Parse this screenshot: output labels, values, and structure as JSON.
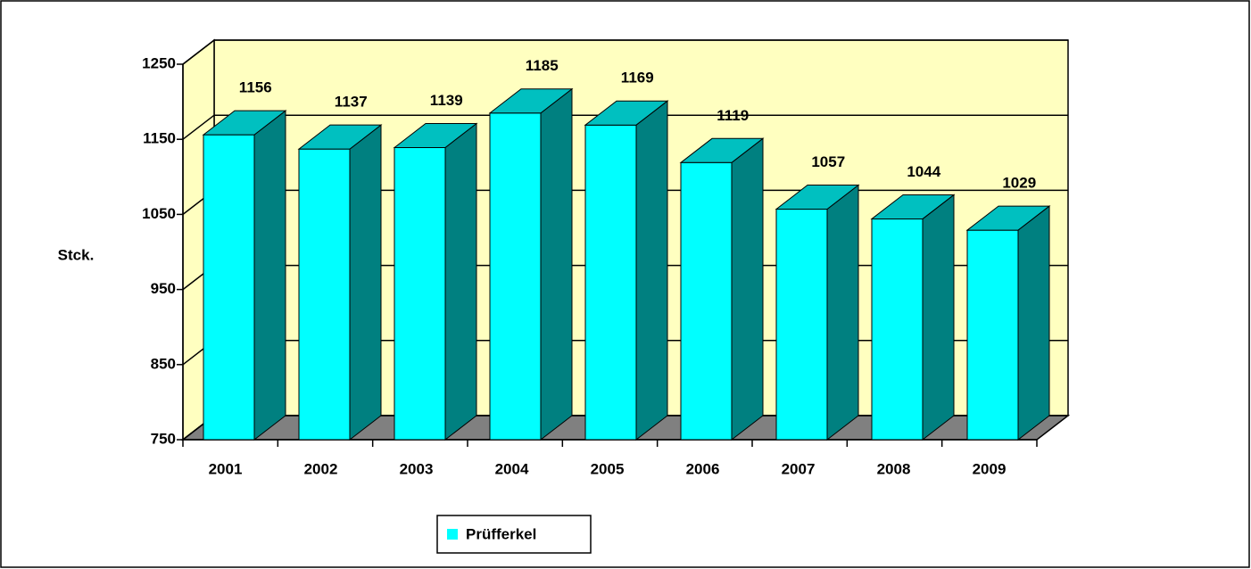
{
  "chart_data": {
    "type": "bar3d",
    "ylabel": "Stck.",
    "categories": [
      "2001",
      "2002",
      "2003",
      "2004",
      "2005",
      "2006",
      "2007",
      "2008",
      "2009"
    ],
    "series": [
      {
        "name": "Prüfferkel",
        "color": "#00ffff",
        "values": [
          1156,
          1137,
          1139,
          1185,
          1169,
          1119,
          1057,
          1044,
          1029
        ]
      }
    ],
    "ylim": [
      750,
      1250
    ],
    "yticks": [
      750,
      850,
      950,
      1050,
      1150,
      1250
    ],
    "grid": true,
    "legend": "bottom"
  }
}
